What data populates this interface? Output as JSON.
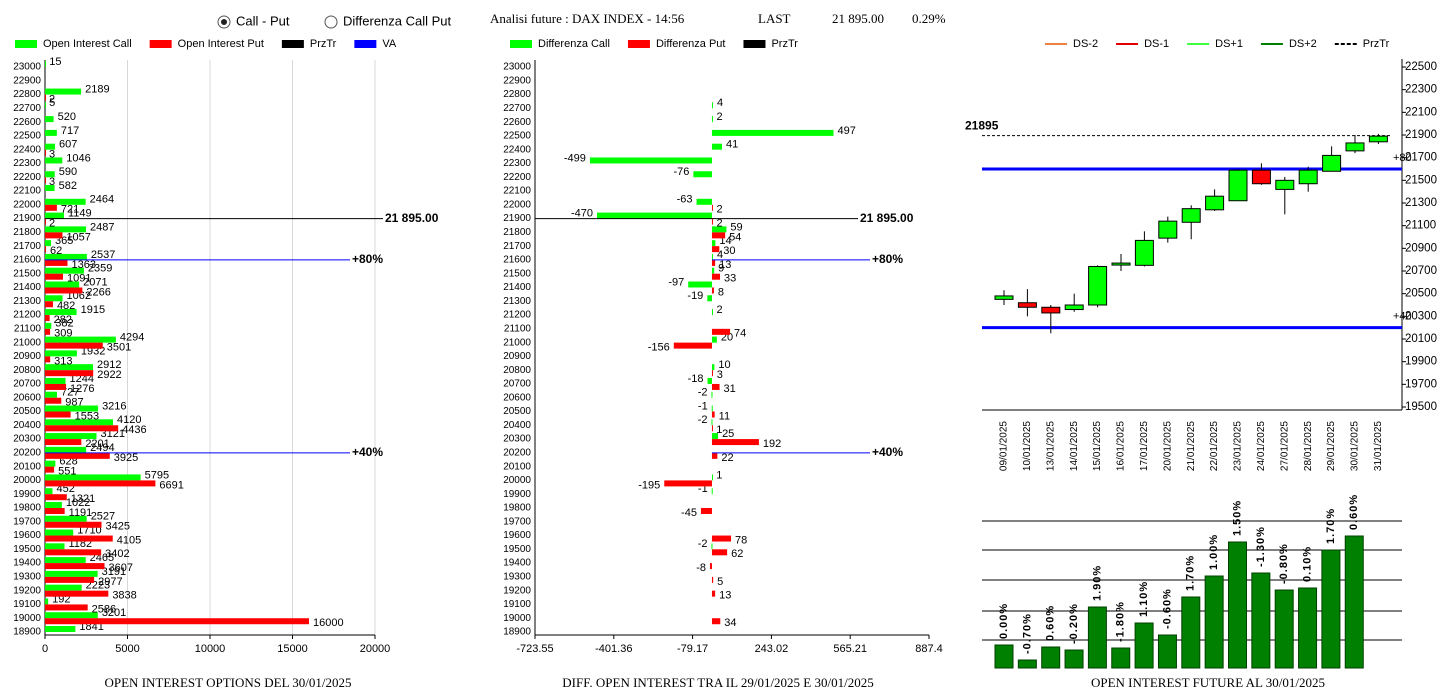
{
  "header": {
    "options": [
      {
        "label": "Call - Put",
        "selected": true
      },
      {
        "label": "Differenza Call Put",
        "selected": false
      }
    ],
    "title": "Analisi future : DAX INDEX - 14:56",
    "last_label": "LAST",
    "last": "21 895.00",
    "change": "0.29%"
  },
  "chart_data": [
    {
      "type": "hbar",
      "title": "OPEN INTEREST OPTIONS DEL 30/01/2025",
      "categories": [
        23000,
        22900,
        22800,
        22700,
        22600,
        22500,
        22400,
        22300,
        22200,
        22100,
        22000,
        21900,
        21800,
        21700,
        21600,
        21500,
        21400,
        21300,
        21200,
        21100,
        21000,
        20900,
        20800,
        20700,
        20600,
        20500,
        20400,
        20300,
        20200,
        20100,
        20000,
        19900,
        19800,
        19700,
        19600,
        19500,
        19400,
        19300,
        19200,
        19100,
        19000,
        18900
      ],
      "series": [
        {
          "name": "Open Interest Call",
          "color": "#00ff00",
          "values": [
            15,
            null,
            2189,
            5,
            520,
            717,
            607,
            1046,
            590,
            582,
            2464,
            1149,
            2487,
            365,
            2537,
            2359,
            2071,
            1062,
            1915,
            382,
            4294,
            1932,
            2912,
            1244,
            727,
            3216,
            4120,
            3121,
            2494,
            628,
            5795,
            452,
            1022,
            2527,
            1710,
            1182,
            2465,
            3191,
            2223,
            192,
            3201,
            1841
          ]
        },
        {
          "name": "Open Interest Put",
          "color": "#ff0000",
          "values": [
            null,
            null,
            2,
            null,
            null,
            null,
            3,
            null,
            3,
            null,
            721,
            2,
            1057,
            62,
            1363,
            1091,
            2266,
            482,
            282,
            309,
            3501,
            313,
            2922,
            1276,
            987,
            1553,
            4436,
            2201,
            3925,
            551,
            6691,
            1321,
            1191,
            3425,
            4105,
            3402,
            3607,
            2977,
            3838,
            2586,
            16000,
            null
          ]
        }
      ],
      "price_line": {
        "name": "PrzTr",
        "color": "#000000",
        "strike": 21900,
        "label": "21 895.00"
      },
      "va": {
        "name": "VA",
        "color": "#0000ff",
        "levels": [
          {
            "strike": 21600,
            "label": "+80%"
          },
          {
            "strike": 20200,
            "label": "+40%"
          }
        ]
      },
      "xlim": [
        0,
        20000
      ],
      "xticks": [
        0,
        5000,
        10000,
        15000,
        20000
      ],
      "grid": true
    },
    {
      "type": "hbar",
      "title": "DIFF. OPEN INTEREST TRA IL 29/01/2025 E 30/01/2025",
      "categories": [
        23000,
        22900,
        22800,
        22700,
        22600,
        22500,
        22400,
        22300,
        22200,
        22100,
        22000,
        21900,
        21800,
        21700,
        21600,
        21500,
        21400,
        21300,
        21200,
        21100,
        21000,
        20900,
        20800,
        20700,
        20600,
        20500,
        20400,
        20300,
        20200,
        20100,
        20000,
        19900,
        19800,
        19700,
        19600,
        19500,
        19400,
        19300,
        19200,
        19100,
        19000,
        18900
      ],
      "series": [
        {
          "name": "Differenza Call",
          "color": "#00ff00",
          "values": [
            null,
            null,
            null,
            4,
            2,
            497,
            41,
            -499,
            -76,
            null,
            -63,
            -470,
            59,
            14,
            4,
            9,
            -97,
            -19,
            2,
            null,
            20,
            null,
            10,
            -18,
            -2,
            -1,
            -2,
            25,
            null,
            null,
            1,
            -1,
            null,
            null,
            null,
            -2,
            null,
            null,
            null,
            null,
            null,
            null
          ]
        },
        {
          "name": "Differenza Put",
          "color": "#ff0000",
          "values": [
            null,
            null,
            null,
            null,
            null,
            null,
            null,
            null,
            null,
            null,
            2,
            2,
            54,
            30,
            13,
            33,
            8,
            null,
            null,
            74,
            -156,
            null,
            3,
            31,
            null,
            11,
            1,
            192,
            22,
            null,
            -195,
            null,
            -45,
            null,
            78,
            62,
            -8,
            5,
            13,
            null,
            34,
            null
          ]
        }
      ],
      "price_line": {
        "name": "PrzTr",
        "color": "#000000",
        "strike": 21900,
        "label": "21 895.00"
      },
      "va": {
        "color": "#0000ff",
        "levels": [
          {
            "strike": 21600,
            "label": "+80%"
          },
          {
            "strike": 20200,
            "label": "+40%"
          }
        ]
      },
      "xlim": [
        -723.55,
        887.4
      ],
      "xticks": [
        -723.55,
        -401.36,
        -79.17,
        243.02,
        565.21,
        887.4
      ],
      "grid": false
    },
    {
      "type": "candlestick",
      "x": [
        "09/01/2025",
        "10/01/2025",
        "13/01/2025",
        "14/01/2025",
        "15/01/2025",
        "16/01/2025",
        "17/01/2025",
        "20/01/2025",
        "21/01/2025",
        "22/01/2025",
        "23/01/2025",
        "24/01/2025",
        "27/01/2025",
        "28/01/2025",
        "29/01/2025",
        "30/01/2025",
        "31/01/2025"
      ],
      "open": [
        20450,
        20420,
        20380,
        20360,
        20400,
        20760,
        20750,
        20990,
        21130,
        21240,
        21320,
        21590,
        21420,
        21470,
        21580,
        21760,
        21840
      ],
      "high": [
        20530,
        20540,
        20400,
        20500,
        20750,
        20850,
        21050,
        21180,
        21280,
        21420,
        21600,
        21650,
        21530,
        21620,
        21800,
        21900,
        21910
      ],
      "low": [
        20400,
        20300,
        20150,
        20340,
        20380,
        20700,
        20740,
        20950,
        20980,
        21230,
        21320,
        21460,
        21200,
        21400,
        21580,
        21740,
        21820
      ],
      "close": [
        20480,
        20380,
        20330,
        20400,
        20740,
        20770,
        20970,
        21140,
        21250,
        21360,
        21590,
        21470,
        21500,
        21590,
        21720,
        21830,
        21890
      ],
      "up_color": "#00ff00",
      "down_color": "#ff0000",
      "legend": [
        {
          "name": "DS-2",
          "color": "#f08040",
          "dashed": false
        },
        {
          "name": "DS-1",
          "color": "#e00000",
          "dashed": false
        },
        {
          "name": "DS+1",
          "color": "#40ff40",
          "dashed": false
        },
        {
          "name": "DS+2",
          "color": "#008000",
          "dashed": false
        },
        {
          "name": "PrzTr",
          "color": "#000000",
          "dashed": true
        }
      ],
      "price_line": {
        "value": 21895,
        "color": "#000000"
      },
      "va": {
        "color": "#0000ff",
        "levels": [
          {
            "value": 21600,
            "label": "+80"
          },
          {
            "value": 20200,
            "label": "+40"
          }
        ]
      },
      "ylim": [
        19500,
        22500
      ],
      "yticks": [
        19500,
        19700,
        19900,
        20100,
        20300,
        20500,
        20700,
        20900,
        21100,
        21300,
        21500,
        21700,
        21900,
        22100,
        22300,
        22500
      ]
    },
    {
      "type": "bar",
      "title": "OPEN INTEREST FUTURE AL 30/01/2025",
      "values": [
        23,
        8,
        21,
        18,
        61,
        20,
        45,
        33,
        71,
        92,
        126,
        95,
        78,
        80,
        118,
        132
      ],
      "change_pct": [
        0.0,
        -0.7,
        0.6,
        -0.2,
        1.9,
        -1.8,
        1.1,
        -0.6,
        1.7,
        1.0,
        1.5,
        -1.3,
        -0.8,
        0.1,
        1.7,
        0.6
      ],
      "change_labels": [
        "0.00%",
        "-0.70%",
        "0.60%",
        "-0.20%",
        "1.90%",
        "-1.80%",
        "1.10%",
        "-0.60%",
        "1.70%",
        "1.00%",
        "1.50%",
        "-1.30%",
        "-0.80%",
        "0.10%",
        "1.70%",
        "0.60%"
      ],
      "color": "#008000",
      "ylim": [
        0,
        160
      ],
      "gridlines": [
        28,
        57,
        88,
        118,
        147
      ]
    }
  ]
}
